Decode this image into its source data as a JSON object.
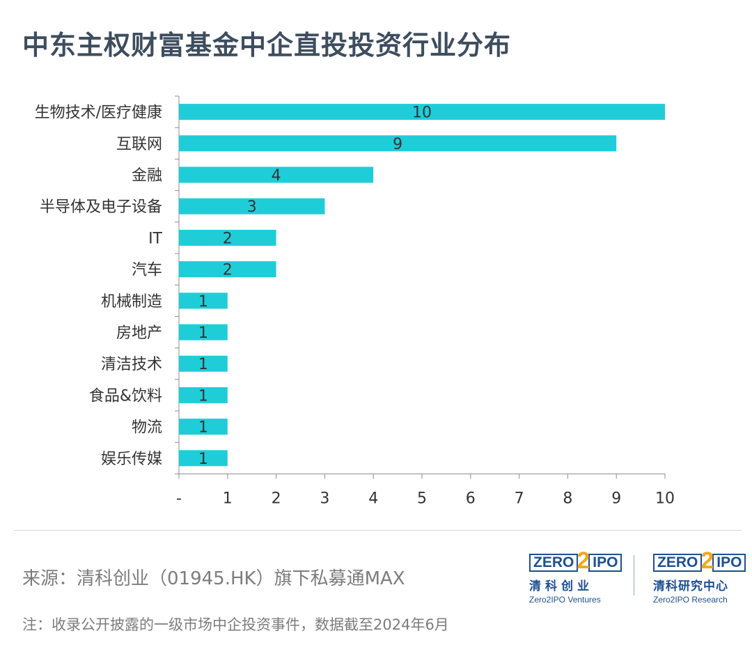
{
  "title": "中东主权财富基金中企直投投资行业分布",
  "chart_data": {
    "type": "bar",
    "orientation": "horizontal",
    "categories": [
      "生物技术/医疗健康",
      "互联网",
      "金融",
      "半导体及电子设备",
      "IT",
      "汽车",
      "机械制造",
      "房地产",
      "清洁技术",
      "食品&饮料",
      "物流",
      "娱乐传媒"
    ],
    "values": [
      10,
      9,
      4,
      3,
      2,
      2,
      1,
      1,
      1,
      1,
      1,
      1
    ],
    "x_ticks": [
      "-",
      "1",
      "2",
      "3",
      "4",
      "5",
      "6",
      "7",
      "8",
      "9",
      "10"
    ],
    "xlim": [
      0,
      10
    ],
    "bar_color": "#1fcdd8",
    "data_labels": true,
    "grid": false,
    "legend": "none"
  },
  "footer": {
    "source": "来源：清科创业（01945.HK）旗下私募通MAX",
    "note": "注：收录公开披露的一级市场中企投资事件，数据截至2024年6月"
  },
  "logos": {
    "left": {
      "mark_a": "ZERO",
      "mark_two": "2",
      "mark_b": "IPO",
      "cn": "清科创业",
      "en": "Zero2IPO Ventures"
    },
    "right": {
      "mark_a": "ZERO",
      "mark_two": "2",
      "mark_b": "IPO",
      "cn": "清科研究中心",
      "en": "Zero2IPO Research"
    }
  },
  "colors": {
    "title": "#3d4d5e",
    "brand_blue": "#1e4f91",
    "brand_orange": "#f0a81d",
    "muted_text": "#7c7c7c"
  }
}
